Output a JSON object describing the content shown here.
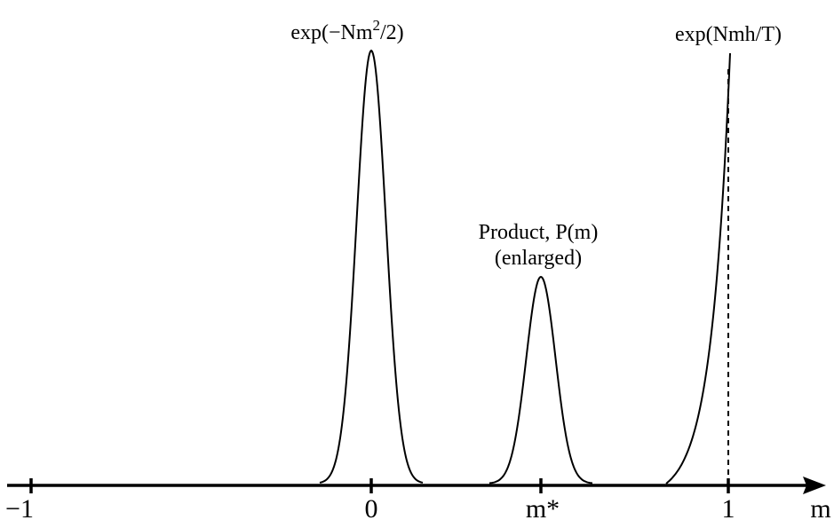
{
  "diagram": {
    "axis": {
      "variable": "m",
      "ticks": [
        {
          "label": "−1",
          "m": -1
        },
        {
          "label": "0",
          "m": 0
        },
        {
          "label": "m*",
          "m": 0.47
        },
        {
          "label": "1",
          "m": 1
        }
      ]
    },
    "curves": [
      {
        "name": "gaussian",
        "label_base": "exp(−Nm",
        "label_sup": "2",
        "label_tail": "/2)",
        "center": 0,
        "peak": 1.0
      },
      {
        "name": "product",
        "label_line1": "Product, P(m)",
        "label_line2": "(enlarged)",
        "center": 0.47,
        "peak": 0.48
      },
      {
        "name": "exponential",
        "label": "exp(Nmh/T)",
        "dashed_marker_at": 1
      }
    ],
    "colors": {
      "ink": "#000000",
      "background": "#ffffff"
    }
  }
}
